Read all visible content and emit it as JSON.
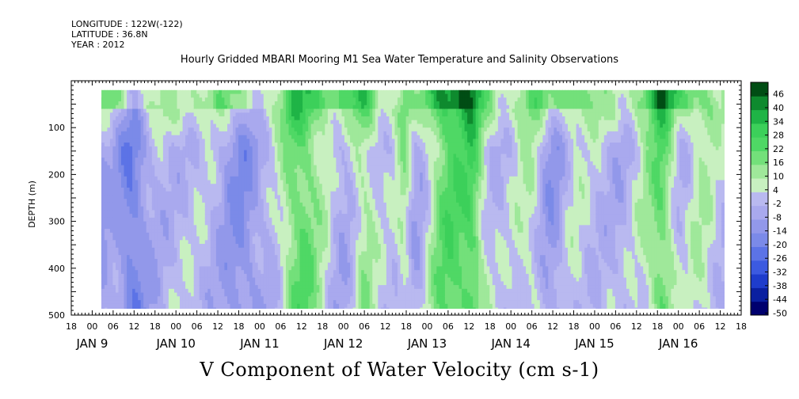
{
  "header": {
    "longitude": "LONGITUDE : 122W(-122)",
    "latitude": "LATITUDE : 36.8N",
    "year": "YEAR : 2012",
    "title": "Hourly Gridded MBARI Mooring M1 Sea Water Temperature and Salinity Observations"
  },
  "chart_data": {
    "type": "heatmap",
    "title": "V Component of Water Velocity (cm s-1)",
    "ylabel": "DEPTH (m)",
    "xlabel": "",
    "ylim": [
      500,
      0
    ],
    "y_ticks": [
      100,
      200,
      300,
      400,
      500
    ],
    "x_hour_labels": [
      "18",
      "00",
      "06",
      "12",
      "18",
      "00",
      "06",
      "12",
      "18",
      "00",
      "06",
      "12",
      "18",
      "00",
      "06",
      "12",
      "18",
      "00",
      "06",
      "12",
      "18",
      "00",
      "06",
      "12",
      "18",
      "00",
      "06",
      "12",
      "18",
      "00",
      "06",
      "12",
      "18"
    ],
    "x_day_labels": [
      "JAN  9",
      "JAN 10",
      "JAN 11",
      "JAN 12",
      "JAN 13",
      "JAN 14",
      "JAN 15",
      "JAN 16"
    ],
    "x_range_hours_from_jan9": [
      -6,
      186
    ],
    "data_depth_range": [
      20,
      485
    ],
    "colorbar": {
      "levels": [
        -50,
        -44,
        -38,
        -32,
        -26,
        -20,
        -14,
        -8,
        -2,
        4,
        10,
        16,
        22,
        28,
        34,
        40,
        46
      ],
      "labels": [
        "46",
        "40",
        "34",
        "28",
        "22",
        "16",
        "10",
        "4",
        "-2",
        "-8",
        "-14",
        "-20",
        "-26",
        "-32",
        "-38",
        "-44",
        "-50"
      ]
    },
    "grid": false,
    "legend_position": "right"
  },
  "colors": {
    "strong_negative": "#00006e",
    "weak_negative": "#a9a9ee",
    "weak_positive": "#9fe89a",
    "positive": "#3cd05a",
    "strong_positive": "#004d14"
  }
}
